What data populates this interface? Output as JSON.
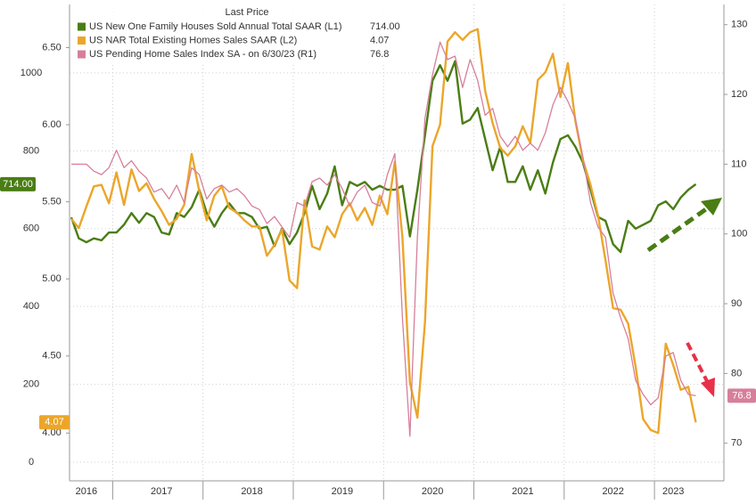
{
  "chart_data": {
    "type": "line",
    "legend_header": "Last Price",
    "categories": [
      null,
      null,
      "2016",
      null,
      null,
      null,
      null,
      null,
      null,
      null,
      null,
      null,
      "2017",
      null,
      null,
      null,
      null,
      null,
      null,
      null,
      null,
      null,
      null,
      null,
      "2018",
      null,
      null,
      null,
      null,
      null,
      null,
      null,
      null,
      null,
      null,
      null,
      "2019",
      null,
      null,
      null,
      null,
      null,
      null,
      null,
      null,
      null,
      null,
      null,
      "2020",
      null,
      null,
      null,
      null,
      null,
      null,
      null,
      null,
      null,
      null,
      null,
      "2021",
      null,
      null,
      null,
      null,
      null,
      null,
      null,
      null,
      null,
      null,
      null,
      "2022",
      null,
      null,
      null,
      null,
      null,
      null,
      null,
      "2023",
      null,
      null,
      null
    ],
    "ylim": [
      -48,
      1176
    ],
    "yticks": [
      0,
      200,
      400,
      600,
      800,
      1000
    ],
    "y3lim": [
      3.69,
      6.78
    ],
    "y3ticks": [
      {
        "value": 4,
        "label": "4.00"
      },
      {
        "value": 4.5,
        "label": "4.50"
      },
      {
        "value": 5,
        "label": "5.00"
      },
      {
        "value": 5.5,
        "label": "5.50"
      },
      {
        "value": 6,
        "label": "6.00"
      },
      {
        "value": 6.5,
        "label": "6.50"
      }
    ],
    "y2lim": [
      64.6,
      132.9
    ],
    "y2ticks": [
      70,
      80,
      90,
      100,
      110,
      120,
      130
    ],
    "grid": true,
    "series": [
      {
        "name": "US New One Family Houses Sold Annual Total SAAR (L1)",
        "axis": "y",
        "color": "#4a7d14",
        "last_label": "714.00",
        "values": [
          629,
          575,
          565,
          575,
          570,
          590,
          590,
          610,
          640,
          615,
          640,
          630,
          590,
          585,
          640,
          630,
          655,
          700,
          640,
          605,
          640,
          665,
          640,
          640,
          630,
          600,
          605,
          555,
          600,
          560,
          590,
          640,
          710,
          650,
          690,
          760,
          660,
          720,
          710,
          720,
          700,
          710,
          700,
          700,
          710,
          580,
          700,
          840,
          980,
          1020,
          980,
          1030,
          870,
          880,
          910,
          830,
          750,
          810,
          720,
          720,
          760,
          700,
          750,
          690,
          770,
          830,
          840,
          810,
          770,
          700,
          630,
          620,
          560,
          540,
          620,
          600,
          610,
          620,
          660,
          670,
          650,
          680,
          700,
          714
        ]
      },
      {
        "name": "US NAR Total Existing Homes Sales SAAR (L2)",
        "axis": "y3",
        "color": "#eba62a",
        "last_label": "4.07",
        "values": [
          5.39,
          5.33,
          5.47,
          5.6,
          5.61,
          5.49,
          5.69,
          5.48,
          5.71,
          5.57,
          5.62,
          5.52,
          5.44,
          5.35,
          5.39,
          5.48,
          5.81,
          5.57,
          5.38,
          5.54,
          5.6,
          5.46,
          5.43,
          5.38,
          5.34,
          5.34,
          5.15,
          5.22,
          5.32,
          4.99,
          4.94,
          5.51,
          5.21,
          5.19,
          5.34,
          5.27,
          5.42,
          5.49,
          5.38,
          5.46,
          5.35,
          5.54,
          5.42,
          5.76,
          5.27,
          4.33,
          4.1,
          4.72,
          5.86,
          6.0,
          6.54,
          6.6,
          6.55,
          6.6,
          6.62,
          6.22,
          6.01,
          5.85,
          5.8,
          5.86,
          5.99,
          5.88,
          6.29,
          6.34,
          6.46,
          6.18,
          6.4,
          6.02,
          5.77,
          5.61,
          5.41,
          5.12,
          4.81,
          4.8,
          4.71,
          4.43,
          4.09,
          4.02,
          4.0,
          4.58,
          4.44,
          4.28,
          4.3,
          4.07
        ]
      },
      {
        "name": "US Pending Home Sales Index SA - on 6/30/23 (R1)",
        "axis": "y2",
        "color": "#d77f9a",
        "last_label": "76.8",
        "values": [
          110,
          110,
          110,
          109,
          108.5,
          109.5,
          112,
          109.5,
          110.5,
          109,
          108,
          106,
          106.5,
          105,
          107,
          104.5,
          109.5,
          108.5,
          105,
          106.5,
          107,
          106,
          106.5,
          105.5,
          104,
          103.5,
          101.5,
          102.5,
          101,
          99.5,
          104.5,
          104,
          107.5,
          108,
          107,
          108.5,
          106.5,
          104,
          106,
          107,
          104.5,
          104,
          108.5,
          111.5,
          88,
          71,
          99.6,
          116.6,
          122.8,
          127.5,
          125,
          125.5,
          121,
          125,
          122,
          117,
          118,
          114,
          112.5,
          114,
          112,
          113,
          112,
          114.5,
          118.5,
          121,
          119,
          116.5,
          111,
          104.5,
          101,
          99.5,
          91.5,
          88,
          85,
          79,
          77,
          75.5,
          76.5,
          82.5,
          83,
          79,
          77,
          76.8
        ]
      }
    ]
  }
}
